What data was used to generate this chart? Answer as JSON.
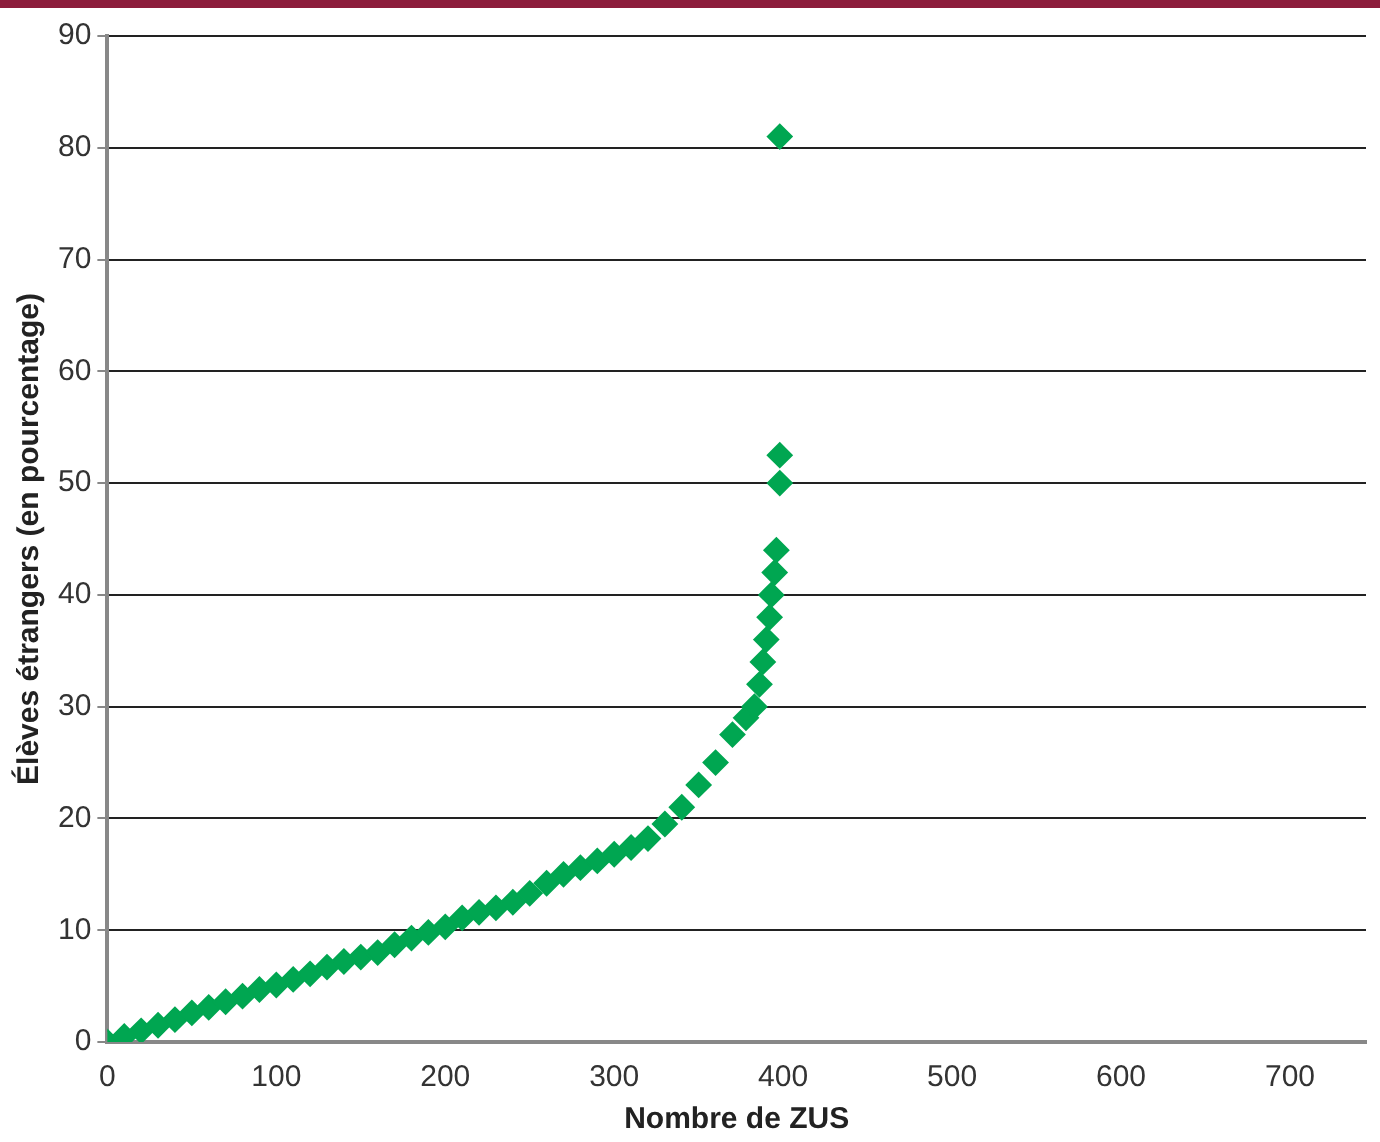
{
  "chart_data": {
    "type": "scatter",
    "xlabel": "Nombre de ZUS",
    "ylabel": "Élèves étrangers (en pourcentage)",
    "x": [
      0,
      10,
      20,
      30,
      40,
      50,
      60,
      70,
      80,
      90,
      100,
      110,
      120,
      130,
      140,
      150,
      160,
      170,
      180,
      190,
      200,
      210,
      220,
      230,
      240,
      250,
      260,
      270,
      280,
      290,
      300,
      310,
      320,
      330,
      340,
      350,
      360,
      370,
      378,
      383,
      386,
      388,
      390,
      392,
      393,
      395,
      396,
      398,
      398,
      398
    ],
    "series": [
      {
        "color": "#00a651",
        "values": [
          0,
          0.5,
          1,
          1.5,
          2,
          2.6,
          3.1,
          3.6,
          4.1,
          4.7,
          5.1,
          5.6,
          6.1,
          6.7,
          7.2,
          7.6,
          8,
          8.7,
          9.3,
          9.8,
          10.3,
          11.1,
          11.6,
          12,
          12.5,
          13.3,
          14.2,
          15,
          15.6,
          16.2,
          16.8,
          17.4,
          18.2,
          19.5,
          21,
          23,
          25,
          27.5,
          29,
          30,
          32,
          34,
          36,
          38,
          40,
          42,
          44,
          50,
          52.5,
          81
        ]
      }
    ],
    "xlim": [
      0,
      745
    ],
    "xticks": [
      0,
      100,
      200,
      300,
      400,
      500,
      600,
      700
    ],
    "ylim": [
      0,
      90
    ],
    "yticks": [
      0,
      10,
      20,
      30,
      40,
      50,
      60,
      70,
      80,
      90
    ],
    "grid": "y",
    "legend": false,
    "marker": "diamond"
  }
}
